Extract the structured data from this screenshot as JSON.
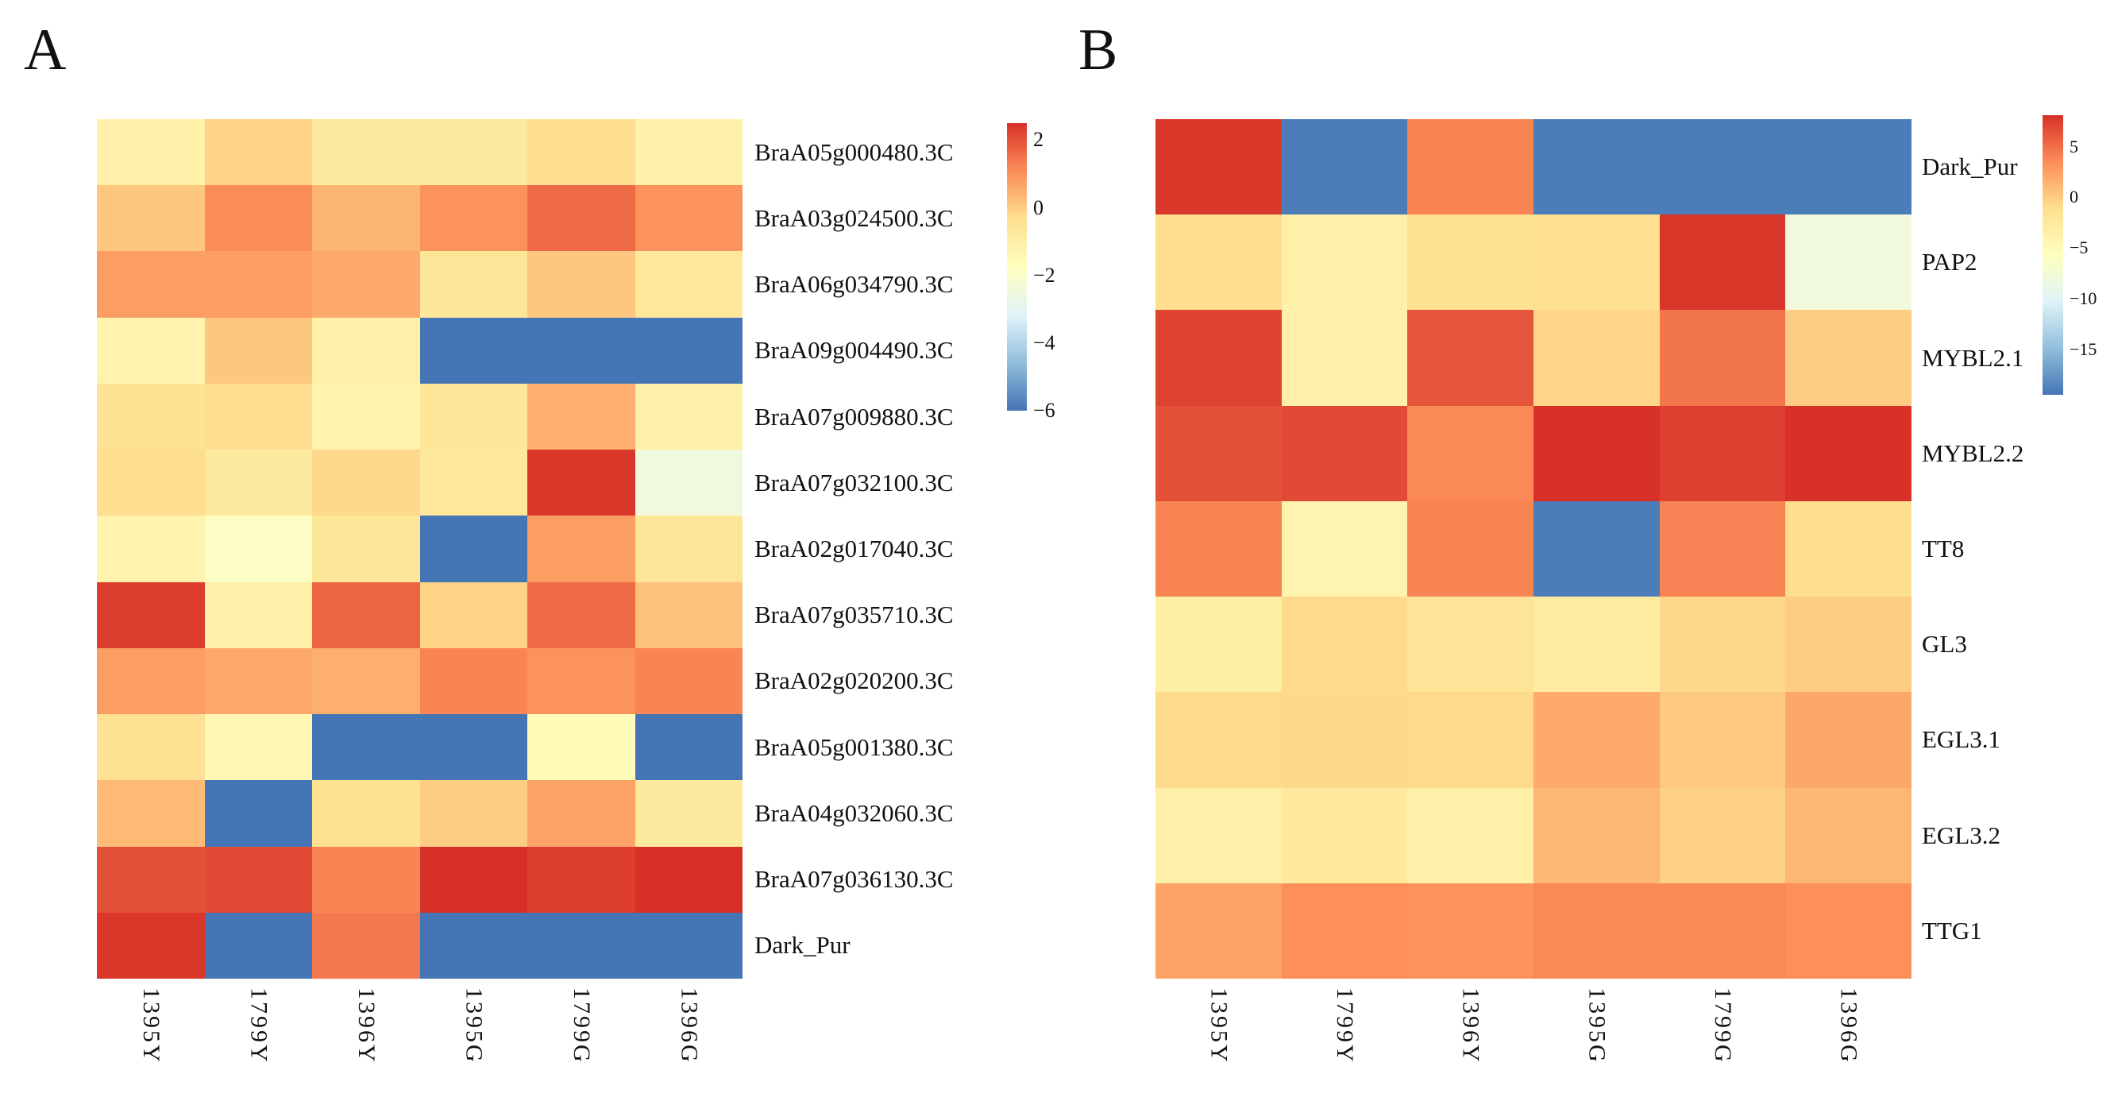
{
  "figure": {
    "background": "#ffffff"
  },
  "colormap": {
    "name": "RdYlBu-reversed",
    "stops_min_to_max": [
      "#4575b4",
      "#91bfdb",
      "#e0f3f8",
      "#ffffbf",
      "#fee090",
      "#fc8d59",
      "#d73027"
    ]
  },
  "chart_data": [
    {
      "type": "heatmap",
      "panel_label": "A",
      "title": "A",
      "legend_position": "right",
      "grid": false,
      "columns": [
        "1395Y",
        "1799Y",
        "1396Y",
        "1395G",
        "1799G",
        "1396G"
      ],
      "rows": [
        "BraA05g000480.3C",
        "BraA03g024500.3C",
        "BraA06g034790.3C",
        "BraA09g004490.3C",
        "BraA07g009880.3C",
        "BraA07g032100.3C",
        "BraA02g017040.3C",
        "BraA07g035710.3C",
        "BraA02g020200.3C",
        "BraA05g001380.3C",
        "BraA04g032060.3C",
        "BraA07g036130.3C",
        "Dark_Pur"
      ],
      "values": [
        [
          -1.1,
          -0.1,
          -0.8,
          -0.8,
          -0.3,
          -1.1
        ],
        [
          0.1,
          1.1,
          0.4,
          1.0,
          1.6,
          1.0
        ],
        [
          0.8,
          0.8,
          0.6,
          -0.6,
          0.1,
          -0.7
        ],
        [
          -1.2,
          0.1,
          -1.1,
          -6.0,
          -6.0,
          -6.0
        ],
        [
          -0.4,
          -0.3,
          -1.2,
          -0.6,
          0.5,
          -1.1
        ],
        [
          -0.3,
          -0.8,
          -0.2,
          -0.7,
          2.4,
          -2.5
        ],
        [
          -1.2,
          -1.9,
          -0.6,
          -6.0,
          0.8,
          -0.6
        ],
        [
          2.3,
          -1.1,
          1.7,
          -0.1,
          1.6,
          0.2
        ],
        [
          0.8,
          0.6,
          0.5,
          1.2,
          1.0,
          1.2
        ],
        [
          -0.4,
          -1.4,
          -6.0,
          -6.0,
          -1.6,
          -6.0
        ],
        [
          0.3,
          -6.0,
          -0.4,
          0.0,
          0.7,
          -0.8
        ],
        [
          2.0,
          2.1,
          1.2,
          2.5,
          2.3,
          2.5
        ],
        [
          2.4,
          -6.0,
          1.4,
          -6.0,
          -6.0,
          -6.0
        ]
      ],
      "colorbar": {
        "vmin": -6.0,
        "vmax": 2.5,
        "ticks": [
          {
            "value": 2,
            "label": "2"
          },
          {
            "value": 0,
            "label": "0"
          },
          {
            "value": -2,
            "label": "−2"
          },
          {
            "value": -4,
            "label": "−4"
          },
          {
            "value": -6,
            "label": "−6"
          }
        ]
      }
    },
    {
      "type": "heatmap",
      "panel_label": "B",
      "title": "B",
      "legend_position": "right",
      "grid": false,
      "columns": [
        "1395Y",
        "1799Y",
        "1396Y",
        "1395G",
        "1799G",
        "1396G"
      ],
      "rows": [
        "Dark_Pur",
        "PAP2",
        "MYBL2.1",
        "MYBL2.2",
        "TT8",
        "GL3",
        "EGL3.1",
        "EGL3.2",
        "TTG1"
      ],
      "values": [
        [
          7.7,
          -19.0,
          3.9,
          -19.0,
          -19.0,
          -19.0
        ],
        [
          -1.0,
          -3.5,
          -1.2,
          -1.1,
          7.8,
          -8.0
        ],
        [
          7.1,
          -3.5,
          6.2,
          -0.5,
          4.7,
          0.0
        ],
        [
          6.5,
          6.8,
          3.7,
          8.0,
          7.3,
          8.0
        ],
        [
          3.9,
          -4.1,
          3.9,
          -19.0,
          4.0,
          -1.0
        ],
        [
          -3.3,
          -0.8,
          -1.7,
          -2.7,
          -0.7,
          0.0
        ],
        [
          -0.8,
          -0.7,
          -0.8,
          1.9,
          0.2,
          2.0
        ],
        [
          -3.5,
          -2.4,
          -3.5,
          1.2,
          -0.2,
          1.2
        ],
        [
          2.3,
          3.4,
          3.2,
          3.7,
          3.7,
          3.4
        ]
      ],
      "colorbar": {
        "vmin": -19.5,
        "vmax": 8.1,
        "ticks": [
          {
            "value": 5,
            "label": "5"
          },
          {
            "value": 0,
            "label": "0"
          },
          {
            "value": -5,
            "label": "−5"
          },
          {
            "value": -10,
            "label": "−10"
          },
          {
            "value": -15,
            "label": "−15"
          }
        ]
      }
    }
  ]
}
